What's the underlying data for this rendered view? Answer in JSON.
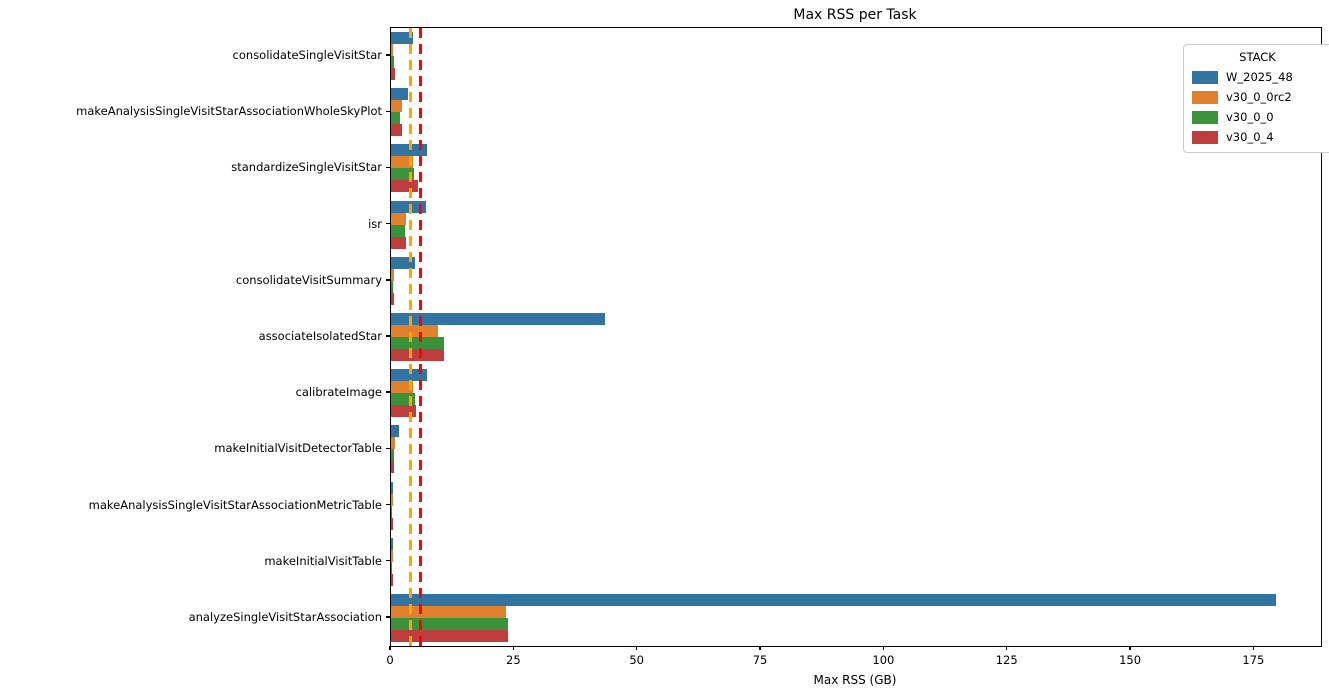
{
  "chart_data": {
    "type": "bar",
    "orientation": "horizontal",
    "title": "Max RSS per Task",
    "xlabel": "Max RSS (GB)",
    "ylabel": "",
    "xlim": [
      0,
      188.5
    ],
    "xticks": [
      0,
      25,
      50,
      75,
      100,
      125,
      150,
      175
    ],
    "grid": false,
    "legend_title": "STACK",
    "legend_position": "upper right",
    "categories": [
      "consolidateSingleVisitStar",
      "makeAnalysisSingleVisitStarAssociationWholeSkyPlot",
      "standardizeSingleVisitStar",
      "isr",
      "consolidateVisitSummary",
      "associateIsolatedStar",
      "calibrateImage",
      "makeInitialVisitDetectorTable",
      "makeAnalysisSingleVisitStarAssociationMetricTable",
      "makeInitialVisitTable",
      "analyzeSingleVisitStarAssociation"
    ],
    "series": [
      {
        "name": "W_2025_48",
        "color": "#3274a1",
        "values": [
          4.5,
          3.5,
          7.2,
          7.0,
          4.8,
          43.4,
          7.2,
          1.7,
          0.5,
          0.5,
          179.4
        ]
      },
      {
        "name": "v30_0_0rc2",
        "color": "#e1812c",
        "values": [
          0.5,
          2.2,
          4.5,
          3.0,
          0.55,
          9.5,
          4.5,
          0.8,
          0.35,
          0.35,
          23.4
        ]
      },
      {
        "name": "v30_0_0",
        "color": "#3a923a",
        "values": [
          0.55,
          1.9,
          4.6,
          2.8,
          0.5,
          10.7,
          4.8,
          0.7,
          0.3,
          0.3,
          23.8
        ]
      },
      {
        "name": "v30_0_4",
        "color": "#c03d3e",
        "values": [
          0.75,
          2.2,
          5.4,
          3.0,
          0.7,
          10.8,
          5.1,
          0.7,
          0.35,
          0.4,
          23.7
        ]
      }
    ],
    "vlines": [
      {
        "name": "orange-threshold",
        "x": 4,
        "color": "#ffa500",
        "style": "dashed"
      },
      {
        "name": "red-threshold",
        "x": 6,
        "color": "#ff0000",
        "style": "dashed"
      }
    ]
  }
}
